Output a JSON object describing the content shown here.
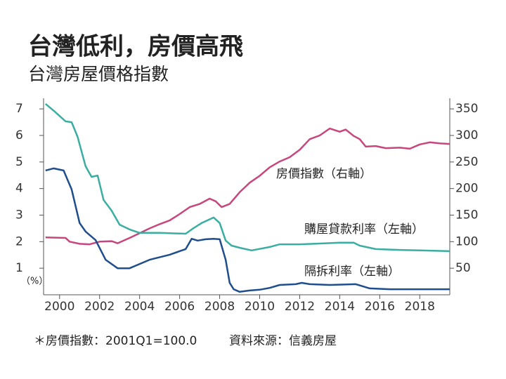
{
  "chart_data": {
    "type": "line",
    "title": "台灣低利，房價高飛",
    "subtitle": "台灣房屋價格指數",
    "y_unit": "（%）",
    "note": "＊房價指數：2001Q1=100.0",
    "source": "資料來源：信義房屋",
    "xlim": [
      1999.2,
      2019.5
    ],
    "xticks": [
      2000,
      2002,
      2004,
      2006,
      2008,
      2010,
      2012,
      2014,
      2016,
      2018
    ],
    "ylim": [
      0,
      7.4
    ],
    "yticks": [
      1,
      2,
      3,
      4,
      5,
      6,
      7
    ],
    "y2lim": [
      0,
      370
    ],
    "y2ticks": [
      50,
      100,
      150,
      200,
      250,
      300,
      350
    ],
    "series": [
      {
        "name": "房價指數（右軸）",
        "color": "#c8467e",
        "axis": "y2",
        "x": [
          1999.3,
          2000.3,
          2000.5,
          2001.0,
          2001.5,
          2002.0,
          2002.6,
          2002.9,
          2003.5,
          2004.0,
          2004.5,
          2005.0,
          2005.5,
          2006.0,
          2006.5,
          2007.0,
          2007.5,
          2007.8,
          2008.1,
          2008.5,
          2009.0,
          2009.5,
          2010.0,
          2010.5,
          2011.0,
          2011.5,
          2012.0,
          2012.5,
          2013.0,
          2013.5,
          2014.0,
          2014.3,
          2014.7,
          2015.0,
          2015.3,
          2015.8,
          2016.3,
          2017.0,
          2017.5,
          2018.0,
          2018.5,
          2019.0,
          2019.5
        ],
        "values": [
          108,
          107,
          100,
          96,
          95,
          100,
          101,
          97,
          107,
          116,
          125,
          133,
          140,
          152,
          165,
          171,
          181,
          176,
          165,
          171,
          193,
          211,
          224,
          240,
          251,
          259,
          273,
          293,
          300,
          313,
          307,
          311,
          299,
          293,
          279,
          280,
          276,
          277,
          275,
          283,
          287,
          285,
          284
        ]
      },
      {
        "name": "購屋貸款利率（左軸）",
        "color": "#3aaea0",
        "x": [
          1999.3,
          1999.8,
          2000.3,
          2000.6,
          2000.9,
          2001.3,
          2001.6,
          2001.9,
          2002.2,
          2002.6,
          2003.0,
          2003.5,
          2004.0,
          2005.0,
          2006.3,
          2006.7,
          2007.1,
          2007.7,
          2008.0,
          2008.3,
          2008.6,
          2009.0,
          2009.6,
          2010.5,
          2011.0,
          2012.0,
          2013.0,
          2014.0,
          2014.7,
          2015.0,
          2015.8,
          2017.0,
          2018.0,
          2019.5
        ],
        "values": [
          7.19,
          6.87,
          6.53,
          6.5,
          5.95,
          4.84,
          4.44,
          4.49,
          3.57,
          3.17,
          2.64,
          2.46,
          2.33,
          2.33,
          2.3,
          2.51,
          2.7,
          2.91,
          2.7,
          2.04,
          1.85,
          1.77,
          1.67,
          1.8,
          1.9,
          1.9,
          1.93,
          1.96,
          1.96,
          1.85,
          1.72,
          1.69,
          1.67,
          1.64
        ]
      },
      {
        "name": "隔拆利率（左軸）",
        "color": "#1f4e8c",
        "x": [
          1999.3,
          1999.7,
          2000.2,
          2000.6,
          2001.0,
          2001.3,
          2001.8,
          2002.3,
          2002.9,
          2003.5,
          2004.5,
          2005.5,
          2006.3,
          2006.6,
          2006.9,
          2007.3,
          2007.7,
          2008.0,
          2008.3,
          2008.5,
          2008.7,
          2009.0,
          2009.5,
          2010.0,
          2010.5,
          2011.0,
          2011.8,
          2012.1,
          2012.5,
          2013.5,
          2014.8,
          2015.5,
          2016.5,
          2018.0,
          2019.5
        ],
        "values": [
          4.68,
          4.76,
          4.68,
          3.97,
          2.7,
          2.38,
          2.06,
          1.32,
          1.0,
          1.0,
          1.32,
          1.51,
          1.72,
          2.11,
          2.04,
          2.09,
          2.11,
          2.09,
          1.32,
          0.45,
          0.21,
          0.11,
          0.16,
          0.19,
          0.26,
          0.37,
          0.4,
          0.45,
          0.4,
          0.37,
          0.4,
          0.24,
          0.21,
          0.21,
          0.21
        ]
      }
    ]
  }
}
